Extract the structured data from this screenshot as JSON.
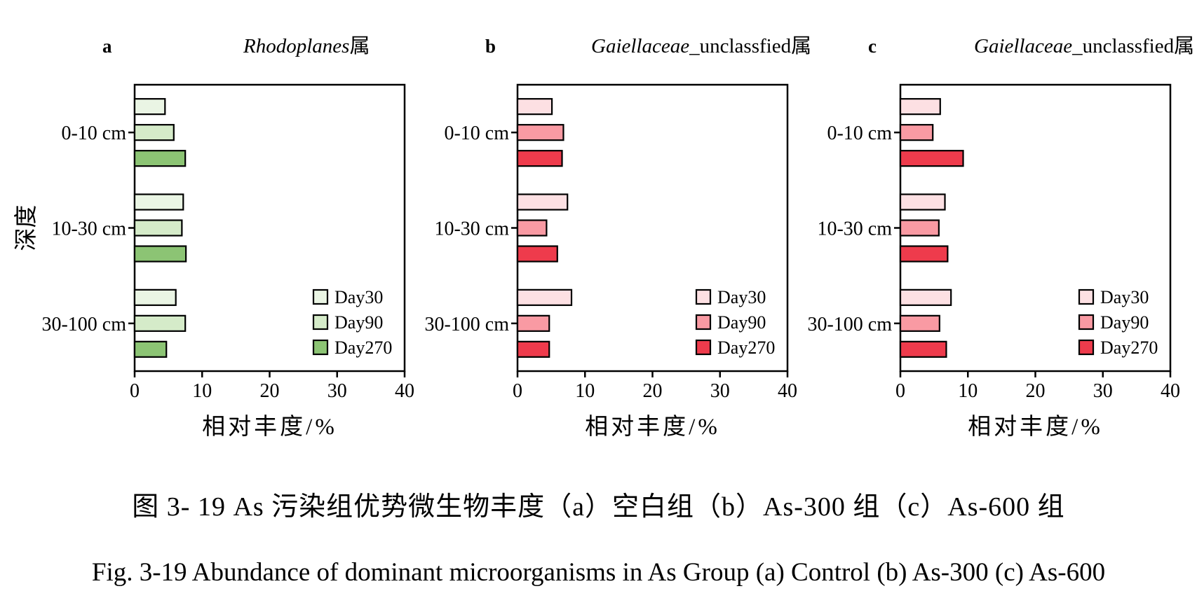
{
  "chart_data": [
    {
      "type": "bar",
      "orientation": "horizontal",
      "panel_label": "a",
      "title_italic": "Rhodoplanes",
      "title_suffix": "属",
      "xlabel": "相对丰度/%",
      "ylabel": "深度",
      "categories": [
        "0-10 cm",
        "10-30 cm",
        "30-100 cm"
      ],
      "xlim": [
        0,
        40
      ],
      "xticks": [
        "0",
        "10",
        "20",
        "30",
        "40"
      ],
      "legend_position": "bottom-right",
      "series": [
        {
          "name": "Day30",
          "color": "#eaf5e4",
          "values": [
            4.5,
            7.2,
            6.1
          ]
        },
        {
          "name": "Day90",
          "color": "#d5ebc9",
          "values": [
            5.8,
            7.0,
            7.5
          ]
        },
        {
          "name": "Day270",
          "color": "#8cc474",
          "values": [
            7.5,
            7.6,
            4.7
          ]
        }
      ]
    },
    {
      "type": "bar",
      "orientation": "horizontal",
      "panel_label": "b",
      "title_italic": "Gaiellaceae",
      "title_suffix": "_unclassfied属",
      "xlabel": "相对丰度/%",
      "ylabel": "",
      "categories": [
        "0-10 cm",
        "10-30 cm",
        "30-100 cm"
      ],
      "xlim": [
        0,
        40
      ],
      "xticks": [
        "0",
        "10",
        "20",
        "30",
        "40"
      ],
      "legend_position": "bottom-right",
      "series": [
        {
          "name": "Day30",
          "color": "#fde0e3",
          "values": [
            5.1,
            7.4,
            8.0
          ]
        },
        {
          "name": "Day90",
          "color": "#f99aa3",
          "values": [
            6.8,
            4.3,
            4.7
          ]
        },
        {
          "name": "Day270",
          "color": "#ee3b4c",
          "values": [
            6.6,
            5.9,
            4.7
          ]
        }
      ]
    },
    {
      "type": "bar",
      "orientation": "horizontal",
      "panel_label": "c",
      "title_italic": "Gaiellaceae",
      "title_suffix": "_unclassfied属",
      "xlabel": "相对丰度/%",
      "ylabel": "",
      "categories": [
        "0-10 cm",
        "10-30 cm",
        "30-100 cm"
      ],
      "xlim": [
        0,
        40
      ],
      "xticks": [
        "0",
        "10",
        "20",
        "30",
        "40"
      ],
      "legend_position": "bottom-right",
      "series": [
        {
          "name": "Day30",
          "color": "#fde0e3",
          "values": [
            5.9,
            6.6,
            7.5
          ]
        },
        {
          "name": "Day90",
          "color": "#f99aa3",
          "values": [
            4.8,
            5.7,
            5.8
          ]
        },
        {
          "name": "Day270",
          "color": "#ee3b4c",
          "values": [
            9.3,
            7.0,
            6.8
          ]
        }
      ]
    }
  ],
  "caption": {
    "chinese": "图 3- 19 As 污染组优势微生物丰度（a）空白组（b）As-300 组（c）As-600 组",
    "english": "Fig. 3-19 Abundance of  dominant microorganisms in As Group (a) Control (b) As-300 (c) As-600"
  }
}
